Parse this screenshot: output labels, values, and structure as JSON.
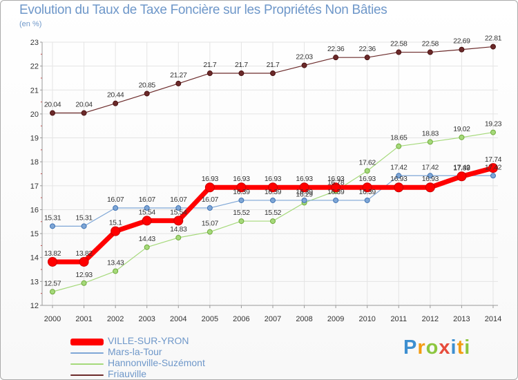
{
  "header": {
    "title": "Evolution du Taux de Taxe Foncière sur les Propriétés Non Bâties",
    "unit": "(en %)"
  },
  "chart_data": {
    "type": "line",
    "title": "Evolution du Taux de Taxe Foncière sur les Propriétés Non Bâties",
    "ylabel": "(en %)",
    "xlabel": "",
    "ylim": [
      12,
      23
    ],
    "yticks": [
      12,
      13,
      14,
      15,
      16,
      17,
      18,
      19,
      20,
      21,
      22,
      23
    ],
    "grid": true,
    "x": [
      "2000",
      "2001",
      "2002",
      "2003",
      "2004",
      "2005",
      "2006",
      "2007",
      "2008",
      "2009",
      "2010",
      "2011",
      "2012",
      "2013",
      "2014"
    ],
    "series": [
      {
        "name": "Friauville",
        "color": "#6b2a2a",
        "values": [
          20.04,
          20.04,
          20.44,
          20.85,
          21.27,
          21.7,
          21.7,
          21.7,
          22.03,
          22.36,
          22.36,
          22.58,
          22.58,
          22.69,
          22.81
        ],
        "labels": [
          "20.04",
          "20.04",
          "20.44",
          "20.85",
          "21.27",
          "21.7",
          "21.7",
          "21.7",
          "22.03",
          "22.36",
          "22.36",
          "22.58",
          "22.58",
          "22.69",
          "22.81"
        ]
      },
      {
        "name": "Hannonville-Suzémont",
        "color": "#a5d97a",
        "values": [
          12.57,
          12.93,
          13.43,
          14.43,
          14.83,
          15.07,
          15.52,
          15.52,
          16.29,
          16.78,
          17.62,
          18.65,
          18.83,
          19.02,
          19.23
        ],
        "labels": [
          "12.57",
          "12.93",
          "13.43",
          "14.43",
          "14.83",
          "15.07",
          "15.52",
          "15.52",
          "16.29",
          "16.78",
          "17.62",
          "18.65",
          "18.83",
          "19.02",
          "19.23"
        ]
      },
      {
        "name": "Mars-la-Tour",
        "color": "#7ea6d6",
        "values": [
          15.31,
          15.31,
          16.07,
          16.07,
          16.07,
          16.07,
          16.39,
          16.39,
          16.39,
          16.39,
          16.39,
          17.42,
          17.42,
          17.42,
          17.42
        ],
        "labels": [
          "15.31",
          "15.31",
          "16.07",
          "16.07",
          "16.07",
          "16.07",
          "16.39",
          "16.39",
          "16.39",
          "16.39",
          "16.39",
          "17.42",
          "17.42",
          "17.42",
          "17.42"
        ]
      },
      {
        "name": "VILLE-SUR-YRON",
        "color": "#ff0000",
        "values": [
          13.82,
          13.82,
          15.1,
          15.54,
          15.54,
          16.93,
          16.93,
          16.93,
          16.93,
          16.93,
          16.93,
          16.93,
          16.93,
          17.39,
          17.74
        ],
        "labels": [
          "13.82",
          "13.82",
          "15.1",
          "15.54",
          "15.54",
          "16.93",
          "16.93",
          "16.93",
          "16.93",
          "16.93",
          "16.93",
          "16.93",
          "16.93",
          "17.39",
          "17.74"
        ]
      }
    ]
  },
  "legend": {
    "items": [
      {
        "label": "VILLE-SUR-YRON",
        "color": "#ff0000"
      },
      {
        "label": "Mars-la-Tour",
        "color": "#7ea6d6"
      },
      {
        "label": "Hannonville-Suzémont",
        "color": "#a5d97a"
      },
      {
        "label": "Friauville",
        "color": "#6b2a2a"
      }
    ]
  },
  "brand": {
    "letters": [
      "P",
      "r",
      "o",
      "x",
      "i",
      "t",
      "i"
    ],
    "colors": [
      "#3d8fd0",
      "#f39c12",
      "#8cc63f",
      "#e74c3c",
      "#3d8fd0",
      "#f39c12",
      "#8cc63f"
    ]
  }
}
